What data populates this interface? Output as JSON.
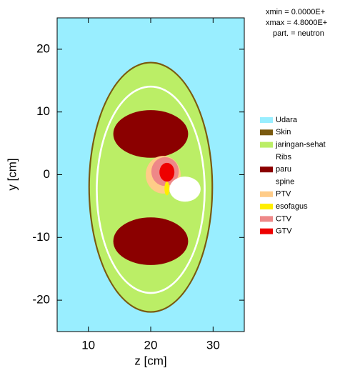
{
  "chart_data": {
    "type": "geometry",
    "info": [
      "xmin  =  0.0000E+",
      "xmax  =  4.8000E+",
      "part. = neutron"
    ],
    "xlabel": "z [cm]",
    "ylabel": "y [cm]",
    "xlim": [
      5,
      35
    ],
    "ylim": [
      -25,
      25
    ],
    "xticks": [
      10,
      20,
      30
    ],
    "yticks": [
      -20,
      -10,
      0,
      10,
      20
    ],
    "background": "#99eeff",
    "shapes": [
      {
        "fill": "#7a5a10",
        "ellipse": [
          20,
          -2,
          10,
          20
        ]
      },
      {
        "fill": "#bbee66",
        "ellipse": [
          20,
          -2,
          9.75,
          19.75
        ]
      },
      {
        "fill": "#ffffff",
        "ellipse": [
          20,
          -2.4,
          8.8,
          16.6
        ]
      },
      {
        "fill": "#bbee66",
        "ellipse": [
          20,
          -2.4,
          8.5,
          16.3
        ]
      },
      {
        "fill": "#8b0000",
        "ellipse": [
          20,
          6.5,
          6,
          3.8
        ]
      },
      {
        "fill": "#8b0000",
        "ellipse": [
          20,
          -10.6,
          6,
          3.8
        ]
      },
      {
        "fill": "#ffcc88",
        "ellipse": [
          22,
          0,
          2.8,
          3
        ]
      },
      {
        "fill": "#ee8888",
        "ellipse": [
          22.3,
          0.5,
          2.2,
          2.3
        ]
      },
      {
        "fill": "#ee0000",
        "ellipse": [
          22.6,
          0.4,
          1.2,
          1.5
        ]
      },
      {
        "fill": "#ffee00",
        "ellipse": [
          22.6,
          -2.2,
          0.4,
          1.1
        ]
      },
      {
        "fill": "#ffffff",
        "ellipse": [
          25.5,
          -2.3,
          2.5,
          2
        ]
      }
    ],
    "legend": [
      {
        "name": "Udara",
        "color": "#99eeff"
      },
      {
        "name": "Skin",
        "color": "#7a5a10"
      },
      {
        "name": "jaringan-sehat",
        "color": "#bbee66"
      },
      {
        "name": "Ribs",
        "color": "#ffffff"
      },
      {
        "name": "paru",
        "color": "#8b0000"
      },
      {
        "name": "spine",
        "color": "#ffffff"
      },
      {
        "name": "PTV",
        "color": "#ffcc88"
      },
      {
        "name": "esofagus",
        "color": "#ffee00"
      },
      {
        "name": "CTV",
        "color": "#ee8888"
      },
      {
        "name": "GTV",
        "color": "#ee0000"
      }
    ]
  }
}
